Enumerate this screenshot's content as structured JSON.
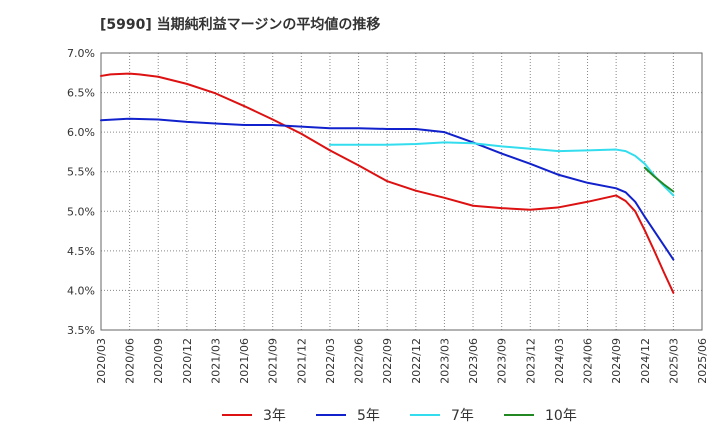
{
  "colors": {
    "series_3y": "#dd1111",
    "series_5y": "#1122cc",
    "series_7y": "#33ddee",
    "series_10y": "#228822",
    "grid": "#888888",
    "axis": "#666666"
  },
  "chart_data": {
    "type": "line",
    "title": "[5990]  当期純利益マージンの平均値の推移",
    "xlabel": "",
    "ylabel": "",
    "ylim": [
      3.5,
      7.0
    ],
    "y_ticks": [
      3.5,
      4.0,
      4.5,
      5.0,
      5.5,
      6.0,
      6.5,
      7.0
    ],
    "y_tick_labels": [
      "3.5%",
      "4.0%",
      "4.5%",
      "5.0%",
      "5.5%",
      "6.0%",
      "6.5%",
      "7.0%"
    ],
    "grid": true,
    "legend_position": "bottom",
    "categories": [
      "2020/03",
      "2020/06",
      "2020/09",
      "2020/12",
      "2021/03",
      "2021/06",
      "2021/09",
      "2021/12",
      "2022/03",
      "2022/06",
      "2022/09",
      "2022/12",
      "2023/03",
      "2023/06",
      "2023/09",
      "2023/12",
      "2024/03",
      "2024/06",
      "2024/09",
      "2024/12",
      "2025/03",
      "2025/06"
    ],
    "series": [
      {
        "name": "3年",
        "color_key": "series_3y",
        "points": [
          [
            "2020/03",
            6.71
          ],
          [
            "2020/04",
            6.73
          ],
          [
            "2020/06",
            6.74
          ],
          [
            "2020/07",
            6.73
          ],
          [
            "2020/09",
            6.7
          ],
          [
            "2020/12",
            6.61
          ],
          [
            "2021/03",
            6.49
          ],
          [
            "2021/06",
            6.33
          ],
          [
            "2021/09",
            6.16
          ],
          [
            "2021/12",
            5.98
          ],
          [
            "2022/03",
            5.77
          ],
          [
            "2022/06",
            5.58
          ],
          [
            "2022/09",
            5.38
          ],
          [
            "2022/12",
            5.26
          ],
          [
            "2023/03",
            5.17
          ],
          [
            "2023/06",
            5.07
          ],
          [
            "2023/09",
            5.04
          ],
          [
            "2023/12",
            5.02
          ],
          [
            "2024/03",
            5.05
          ],
          [
            "2024/06",
            5.12
          ],
          [
            "2024/09",
            5.2
          ],
          [
            "2024/10",
            5.13
          ],
          [
            "2024/11",
            5.0
          ],
          [
            "2024/12",
            4.76
          ],
          [
            "2025/01",
            4.5
          ],
          [
            "2025/02",
            4.23
          ],
          [
            "2025/03",
            3.97
          ]
        ]
      },
      {
        "name": "5年",
        "color_key": "series_5y",
        "points": [
          [
            "2020/03",
            6.15
          ],
          [
            "2020/06",
            6.17
          ],
          [
            "2020/09",
            6.16
          ],
          [
            "2020/12",
            6.13
          ],
          [
            "2021/03",
            6.11
          ],
          [
            "2021/06",
            6.09
          ],
          [
            "2021/09",
            6.09
          ],
          [
            "2021/12",
            6.07
          ],
          [
            "2022/03",
            6.05
          ],
          [
            "2022/06",
            6.05
          ],
          [
            "2022/09",
            6.04
          ],
          [
            "2022/12",
            6.04
          ],
          [
            "2023/03",
            6.0
          ],
          [
            "2023/06",
            5.87
          ],
          [
            "2023/09",
            5.73
          ],
          [
            "2023/12",
            5.6
          ],
          [
            "2024/03",
            5.46
          ],
          [
            "2024/06",
            5.36
          ],
          [
            "2024/09",
            5.29
          ],
          [
            "2024/10",
            5.24
          ],
          [
            "2024/11",
            5.12
          ],
          [
            "2024/12",
            4.93
          ],
          [
            "2025/01",
            4.75
          ],
          [
            "2025/02",
            4.57
          ],
          [
            "2025/03",
            4.39
          ]
        ]
      },
      {
        "name": "7年",
        "color_key": "series_7y",
        "points": [
          [
            "2022/03",
            5.84
          ],
          [
            "2022/06",
            5.84
          ],
          [
            "2022/09",
            5.84
          ],
          [
            "2022/12",
            5.85
          ],
          [
            "2023/03",
            5.87
          ],
          [
            "2023/06",
            5.86
          ],
          [
            "2023/09",
            5.82
          ],
          [
            "2023/12",
            5.79
          ],
          [
            "2024/03",
            5.76
          ],
          [
            "2024/06",
            5.77
          ],
          [
            "2024/09",
            5.78
          ],
          [
            "2024/10",
            5.76
          ],
          [
            "2024/11",
            5.7
          ],
          [
            "2024/12",
            5.6
          ],
          [
            "2025/01",
            5.45
          ],
          [
            "2025/02",
            5.32
          ],
          [
            "2025/03",
            5.2
          ]
        ]
      },
      {
        "name": "10年",
        "color_key": "series_10y",
        "points": [
          [
            "2024/12",
            5.55
          ],
          [
            "2025/01",
            5.44
          ],
          [
            "2025/02",
            5.34
          ],
          [
            "2025/03",
            5.25
          ]
        ]
      }
    ]
  }
}
